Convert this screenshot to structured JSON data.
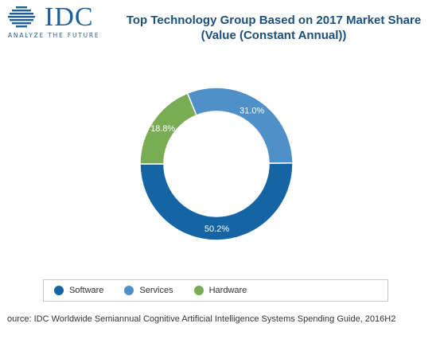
{
  "brand": {
    "name": "IDC",
    "tagline": "ANALYZE THE FUTURE",
    "color": "#1d5f96"
  },
  "chart_data": {
    "type": "pie",
    "style": "donut",
    "title_lines": [
      "Top Technology Group Based on 2017 Market Share",
      "(Value (Constant Annual))"
    ],
    "slices": [
      {
        "label": "Software",
        "value": 50.2,
        "display": "50.2%",
        "color": "#1565a4"
      },
      {
        "label": "Services",
        "value": 31.0,
        "display": "31.0%",
        "color": "#5090c8"
      },
      {
        "label": "Hardware",
        "value": 18.8,
        "display": "18.8%",
        "color": "#7aac56"
      }
    ],
    "legend_position": "bottom"
  },
  "source": "ource: IDC Worldwide Semiannual Cognitive Artificial Intelligence Systems Spending Guide, 2016H2"
}
